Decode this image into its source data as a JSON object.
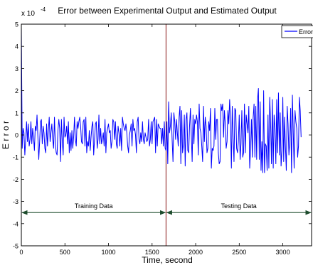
{
  "chart_data": {
    "type": "line",
    "title": "Error between Experimental Output and Estimated Output",
    "xlabel": "Time, second",
    "ylabel": "E r r o r",
    "y_multiplier": "x 10",
    "y_exponent": "-4",
    "xlim": [
      0,
      3330
    ],
    "ylim": [
      -5,
      5
    ],
    "xticks": [
      0,
      500,
      1000,
      1500,
      2000,
      2500,
      3000
    ],
    "yticks": [
      -5,
      -4,
      -3,
      -2,
      -1,
      0,
      1,
      2,
      3,
      4,
      5
    ],
    "grid": false,
    "legend": {
      "position": "top-right",
      "entries": [
        "Error"
      ]
    },
    "colors": {
      "series": "#0000ff",
      "divider": "#8b1a1a",
      "arrow": "#1f4d2e"
    },
    "divider_x": 1660,
    "annotations": [
      {
        "text": "Training Data",
        "x_from": 0,
        "x_to": 1660,
        "y": -3.5
      },
      {
        "text": "Testing Data",
        "x_from": 1660,
        "x_to": 3330,
        "y": -3.5
      }
    ],
    "series": [
      {
        "name": "Error",
        "x_start": 0,
        "x_step": 10,
        "values": [
          4.9,
          -0.6,
          0.3,
          0.1,
          -0.9,
          -0.2,
          0.6,
          -0.3,
          0.5,
          -0.5,
          -0.2,
          0.6,
          -0.4,
          0.3,
          -0.1,
          -0.7,
          0.4,
          0.2,
          0.9,
          -0.1,
          -1.1,
          -0.3,
          0.6,
          0.7,
          -0.4,
          0.4,
          0.1,
          -0.6,
          -0.8,
          0.5,
          -0.5,
          0.2,
          0.8,
          -0.3,
          0.1,
          0.5,
          -0.2,
          -0.6,
          0.8,
          -0.4,
          -0.8,
          -0.9,
          0.2,
          0.7,
          0.3,
          -1.2,
          0.7,
          -0.3,
          -0.9,
          0.8,
          -0.1,
          0.0,
          0.4,
          -0.4,
          0.6,
          -0.8,
          0.1,
          -0.7,
          0.2,
          -0.6,
          -0.1,
          0.8,
          -0.2,
          -0.5,
          0.6,
          0.3,
          0.6,
          0.8,
          0.4,
          -0.3,
          -0.4,
          0.6,
          0.7,
          -0.5,
          0.8,
          -0.8,
          -0.3,
          -0.5,
          0.2,
          -0.7,
          -0.1,
          0.4,
          0.6,
          -0.9,
          -0.2,
          0.5,
          0.6,
          -0.6,
          -0.2,
          0.9,
          -0.4,
          0.3,
          -0.4,
          -0.2,
          0.1,
          -0.5,
          0.7,
          -0.8,
          0.1,
          0.3,
          0.5,
          0.1,
          0.2,
          -0.6,
          -0.3,
          0.7,
          0.6,
          -0.2,
          0.6,
          -0.4,
          -0.6,
          0.4,
          0.1,
          -0.5,
          0.3,
          -0.7,
          0.8,
          0.5,
          0.3,
          0.2,
          0.5,
          0.1,
          -0.5,
          -0.8,
          0.0,
          0.2,
          0.5,
          -0.5,
          0.7,
          0.2,
          0.3,
          0.0,
          -0.8,
          0.6,
          0.8,
          -0.2,
          -0.4,
          0.1,
          -0.3,
          0.6,
          -0.2,
          -0.4,
          0.1,
          -0.1,
          -0.3,
          -0.2,
          0.7,
          -0.5,
          -0.2,
          0.6,
          -0.4,
          0.6,
          0.7,
          0.8,
          -0.8,
          0.7,
          -0.5,
          0.5,
          0.4,
          0.3,
          0.3,
          -0.4,
          0.3,
          -0.5,
          0.6,
          -0.6,
          -0.7,
          0.6,
          -1.3,
          1.5,
          0.1,
          0.4,
          1.0,
          -0.2,
          -1.2,
          1.0,
          0.6,
          -0.2,
          0.7,
          0.1,
          -0.5,
          0.8,
          1.3,
          -1.3,
          1.1,
          -0.8,
          -0.4,
          0.9,
          -1.4,
          0.7,
          1.0,
          -0.7,
          -0.8,
          0.4,
          1.2,
          0.0,
          -1.2,
          0.9,
          -0.4,
          0.7,
          0.5,
          0.9,
          0.6,
          -0.9,
          1.4,
          0.3,
          0.1,
          -0.5,
          -1.2,
          1.3,
          -0.3,
          0.8,
          0.4,
          -0.8,
          -0.6,
          0.6,
          0.2,
          1.2,
          -1.5,
          -0.6,
          -0.7,
          -0.5,
          1.2,
          -0.2,
          0.7,
          0.7,
          -0.8,
          -1.3,
          -1.2,
          1.4,
          1.1,
          1.4,
          -0.1,
          1.1,
          0.5,
          -0.6,
          -0.3,
          1.1,
          0.5,
          1.6,
          0.6,
          -1.5,
          1.3,
          -0.1,
          -1.2,
          1.2,
          1.1,
          -0.6,
          -0.8,
          -0.3,
          0.9,
          -1.1,
          -0.4,
          1.1,
          -1.0,
          -0.8,
          1.4,
          -0.8,
          0.9,
          0.5,
          0.1,
          1.3,
          -1.5,
          -0.6,
          0.7,
          -1.0,
          0.8,
          1.4,
          -1.0,
          1.3,
          -1.1,
          1.6,
          2.1,
          -1.1,
          1.5,
          -1.6,
          -0.3,
          -1.7,
          2.0,
          -1.7,
          -0.4,
          -0.5,
          -1.6,
          0.9,
          -1.5,
          1.7,
          0.5,
          -1.3,
          1.6,
          -1.5,
          0.9,
          0.3,
          -1.3,
          1.6,
          -0.8,
          1.9,
          -0.9,
          1.0,
          -1.4,
          -0.7,
          1.7,
          -1.2,
          0.8,
          -0.5,
          -1.6,
          1.3,
          0.5,
          -0.9,
          -0.3,
          1.2,
          -1.7,
          1.8,
          0.1,
          -1.5,
          1.1,
          0.6,
          0.3,
          -1.0,
          -0.5,
          1.7,
          1.1,
          -0.1
        ]
      }
    ]
  }
}
